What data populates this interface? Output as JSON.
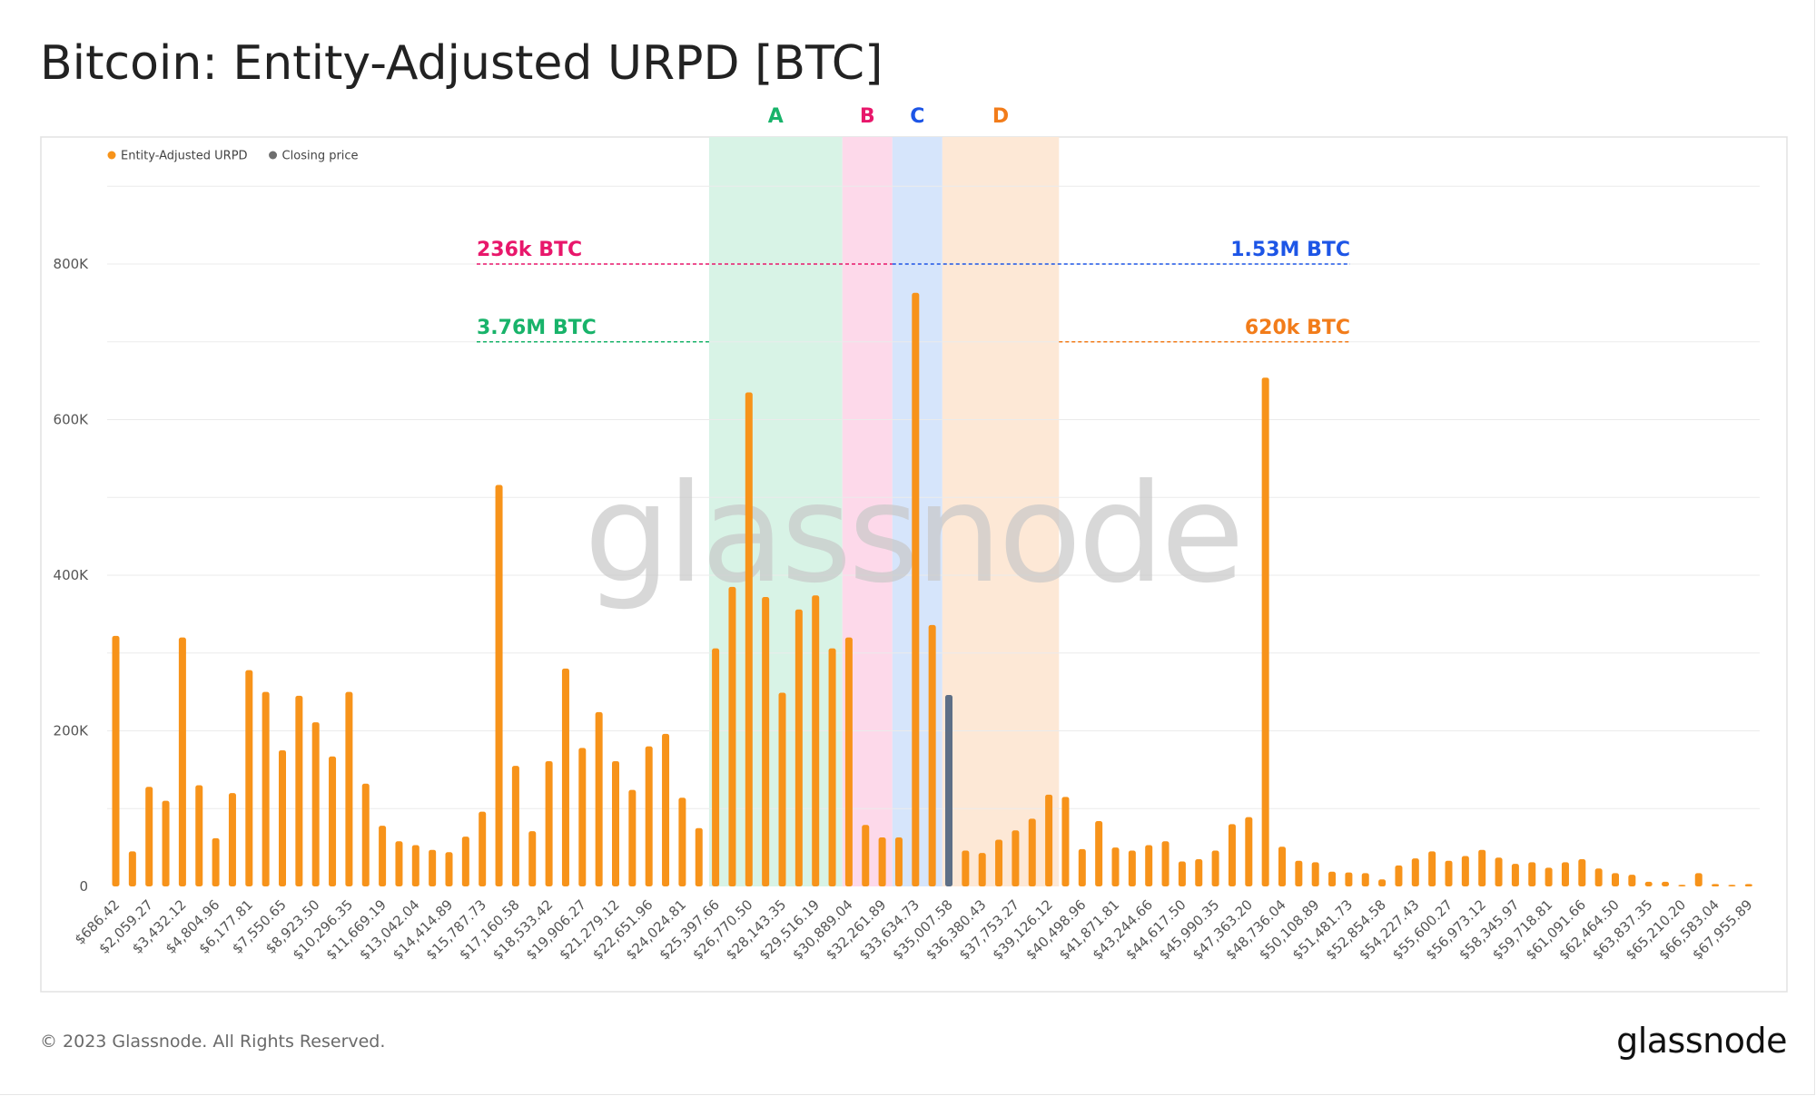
{
  "page": {
    "title": "Bitcoin: Entity-Adjusted URPD [BTC]",
    "copyright": "© 2023 Glassnode. All Rights Reserved.",
    "logo": "glassnode",
    "watermark": "glassnode"
  },
  "chart_data": {
    "type": "bar",
    "title": "Bitcoin: Entity-Adjusted URPD [BTC]",
    "xlabel": "",
    "ylabel": "",
    "ylim": [
      0,
      900000
    ],
    "yticks": [
      0,
      200000,
      400000,
      600000,
      800000
    ],
    "ytick_labels": [
      "0",
      "200K",
      "400K",
      "600K",
      "800K"
    ],
    "grid": true,
    "legend_position": "top-left",
    "legend": [
      {
        "name": "Entity-Adjusted URPD",
        "color": "#f7931a"
      },
      {
        "name": "Closing price",
        "color": "#6e6e6e"
      }
    ],
    "colors": {
      "bar": "#f7931a",
      "closing": "#5d6f86"
    },
    "x_tick_labels": [
      "$686.42",
      "$2,059.27",
      "$3,432.12",
      "$4,804.96",
      "$6,177.81",
      "$7,550.65",
      "$8,923.50",
      "$10,296.35",
      "$11,669.19",
      "$13,042.04",
      "$14,414.89",
      "$15,787.73",
      "$17,160.58",
      "$18,533.42",
      "$19,906.27",
      "$21,279.12",
      "$22,651.96",
      "$24,024.81",
      "$25,397.66",
      "$26,770.50",
      "$28,143.35",
      "$29,516.19",
      "$30,889.04",
      "$32,261.89",
      "$33,634.73",
      "$35,007.58",
      "$36,380.43",
      "$37,753.27",
      "$39,126.12",
      "$40,498.96",
      "$41,871.81",
      "$43,244.66",
      "$44,617.50",
      "$45,990.35",
      "$47,363.20",
      "$48,736.04",
      "$50,108.89",
      "$51,481.73",
      "$52,854.58",
      "$54,227.43",
      "$55,600.27",
      "$56,973.12",
      "$58,345.97",
      "$59,718.81",
      "$61,091.66",
      "$62,464.50",
      "$63,837.35",
      "$65,210.20",
      "$66,583.04",
      "$67,955.89"
    ],
    "values": [
      322000,
      45000,
      128000,
      110000,
      320000,
      130000,
      62000,
      120000,
      278000,
      250000,
      175000,
      245000,
      211000,
      167000,
      250000,
      132000,
      78000,
      58000,
      53000,
      47000,
      44000,
      64000,
      96000,
      516000,
      155000,
      71000,
      161000,
      280000,
      178000,
      224000,
      161000,
      124000,
      180000,
      196000,
      114000,
      75000,
      306000,
      385000,
      635000,
      372000,
      249000,
      356000,
      374000,
      306000,
      320000,
      79000,
      63000,
      63000,
      763000,
      336000,
      246000,
      46000,
      43000,
      60000,
      72000,
      87000,
      118000,
      115000,
      48000,
      84000,
      50000,
      46000,
      53000,
      58000,
      32000,
      35000,
      46000,
      80000,
      89000,
      654000,
      51000,
      33000,
      31000,
      19000,
      18000,
      17000,
      9000,
      27000,
      36000,
      45000,
      33000,
      39000,
      47000,
      37000,
      29000,
      31000,
      24000,
      31000,
      35000,
      23000,
      17000,
      15000,
      6000,
      6000,
      2000,
      17000,
      3000,
      2000,
      3000
    ],
    "closing_price_bin_index": 50,
    "zones": [
      {
        "label": "A",
        "color": "#18b36a",
        "fill": "#d8f3e6",
        "start_bin": 36,
        "end_bin": 44
      },
      {
        "label": "B",
        "color": "#e8176b",
        "fill": "#fdd9ea",
        "start_bin": 44,
        "end_bin": 47
      },
      {
        "label": "C",
        "color": "#1d55e6",
        "fill": "#d6e5fb",
        "start_bin": 47,
        "end_bin": 50
      },
      {
        "label": "D",
        "color": "#f27c1a",
        "fill": "#fde8d6",
        "start_bin": 50,
        "end_bin": 57
      }
    ],
    "annotations": [
      {
        "label": "236k BTC",
        "color": "#e8176b",
        "value": 800000,
        "side": "left",
        "zone": "B"
      },
      {
        "label": "3.76M BTC",
        "color": "#18b36a",
        "value": 700000,
        "side": "left",
        "zone": "A"
      },
      {
        "label": "1.53M BTC",
        "color": "#1d55e6",
        "value": 800000,
        "side": "right",
        "zone": "C"
      },
      {
        "label": "620k BTC",
        "color": "#f27c1a",
        "value": 700000,
        "side": "right",
        "zone": "D"
      }
    ]
  }
}
